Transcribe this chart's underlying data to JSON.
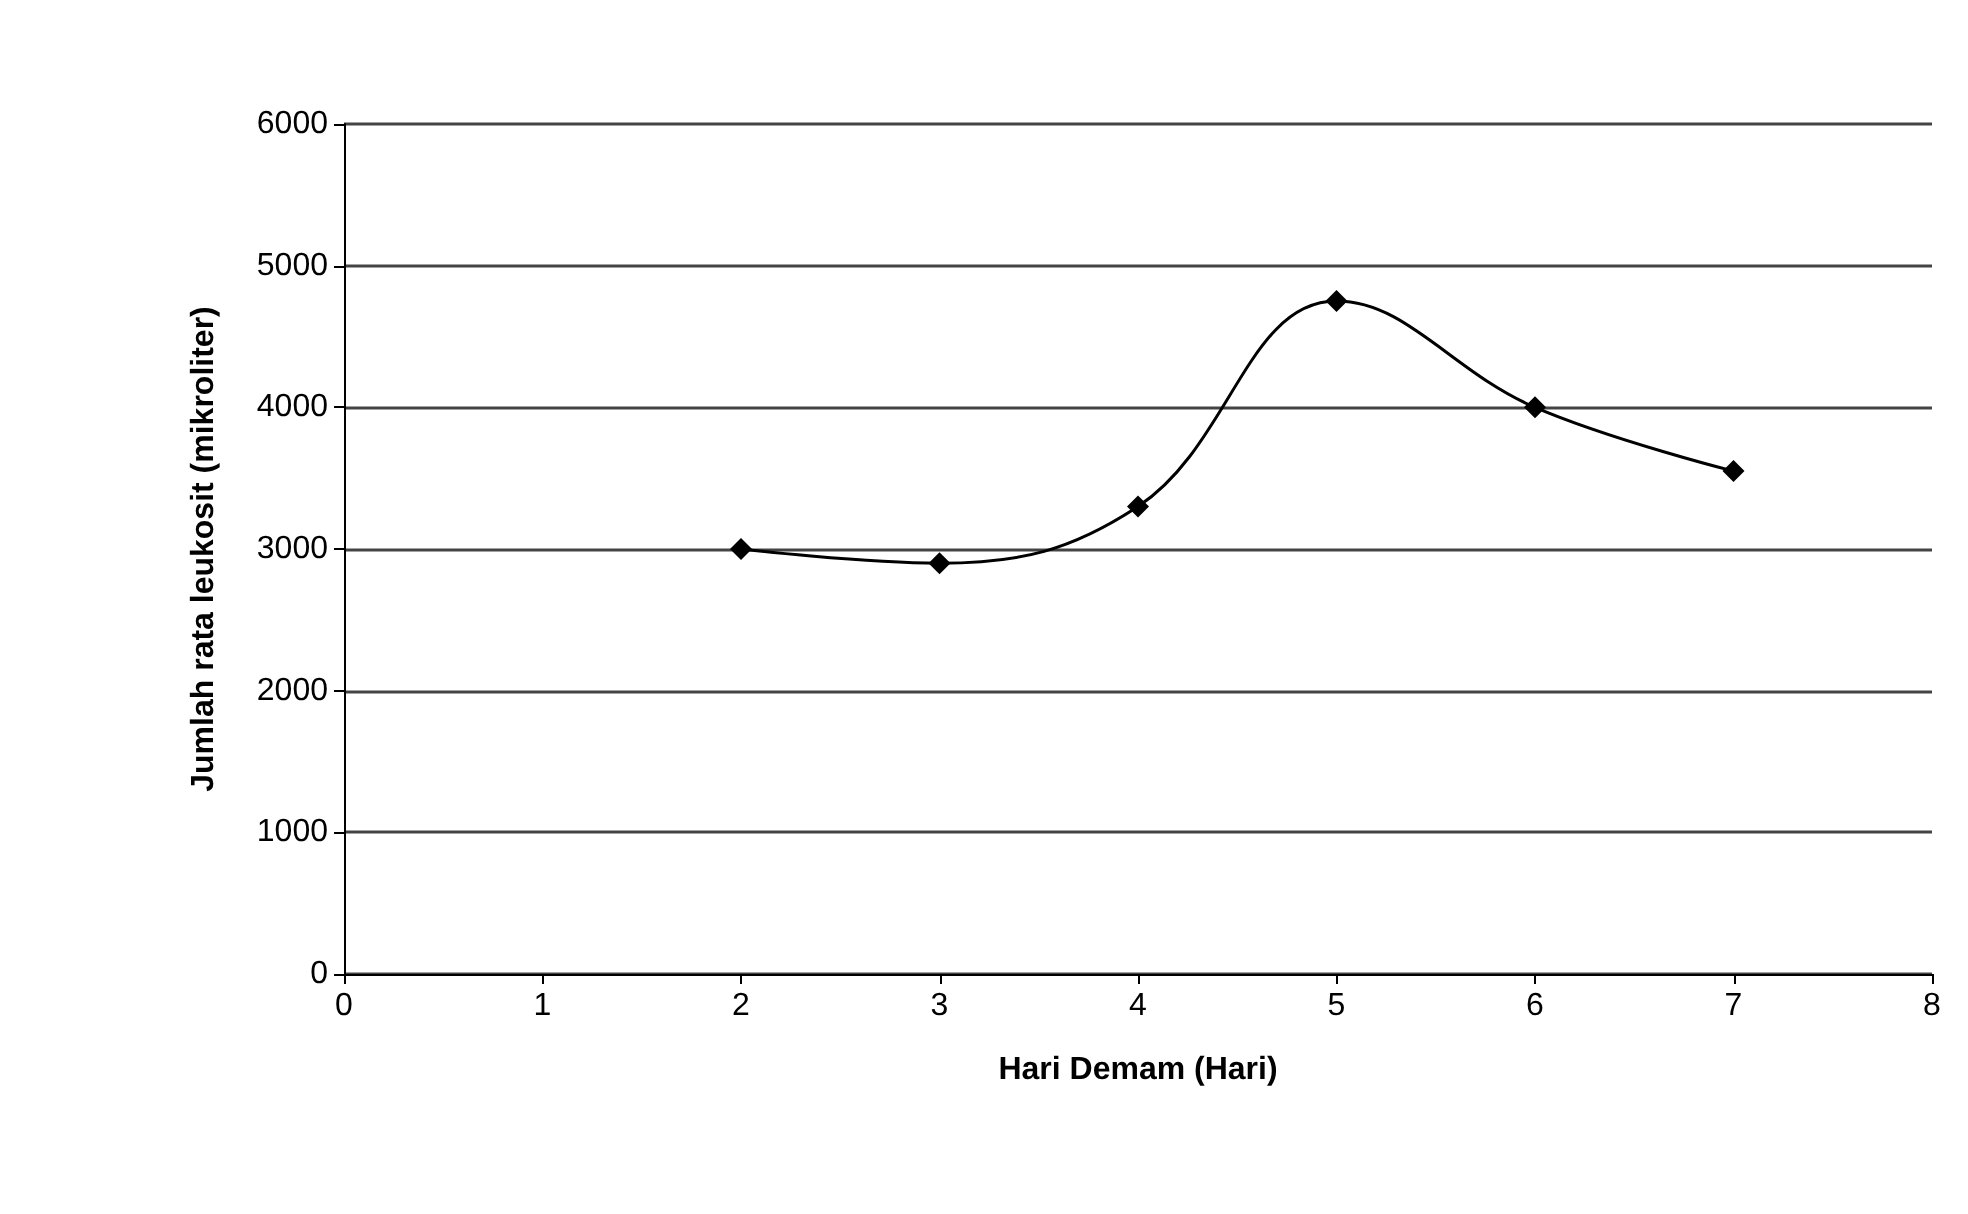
{
  "chart_data": {
    "type": "line",
    "xlabel": "Hari Demam (Hari)",
    "ylabel": "Jumlah rata leukosit (mikroliter)",
    "x": [
      2,
      3,
      4,
      5,
      6,
      7
    ],
    "series": [
      {
        "color": "#000000",
        "values": [
          3000,
          2900,
          3300,
          4750,
          4000,
          3550
        ]
      }
    ],
    "xlim": [
      0,
      8
    ],
    "xticks": [
      0,
      1,
      2,
      3,
      4,
      5,
      6,
      7,
      8
    ],
    "ylim": [
      0,
      6000
    ],
    "yticks": [
      0,
      1000,
      2000,
      3000,
      4000,
      5000,
      6000
    ],
    "grid": "y",
    "marker": "diamond",
    "line_style": "solid"
  }
}
